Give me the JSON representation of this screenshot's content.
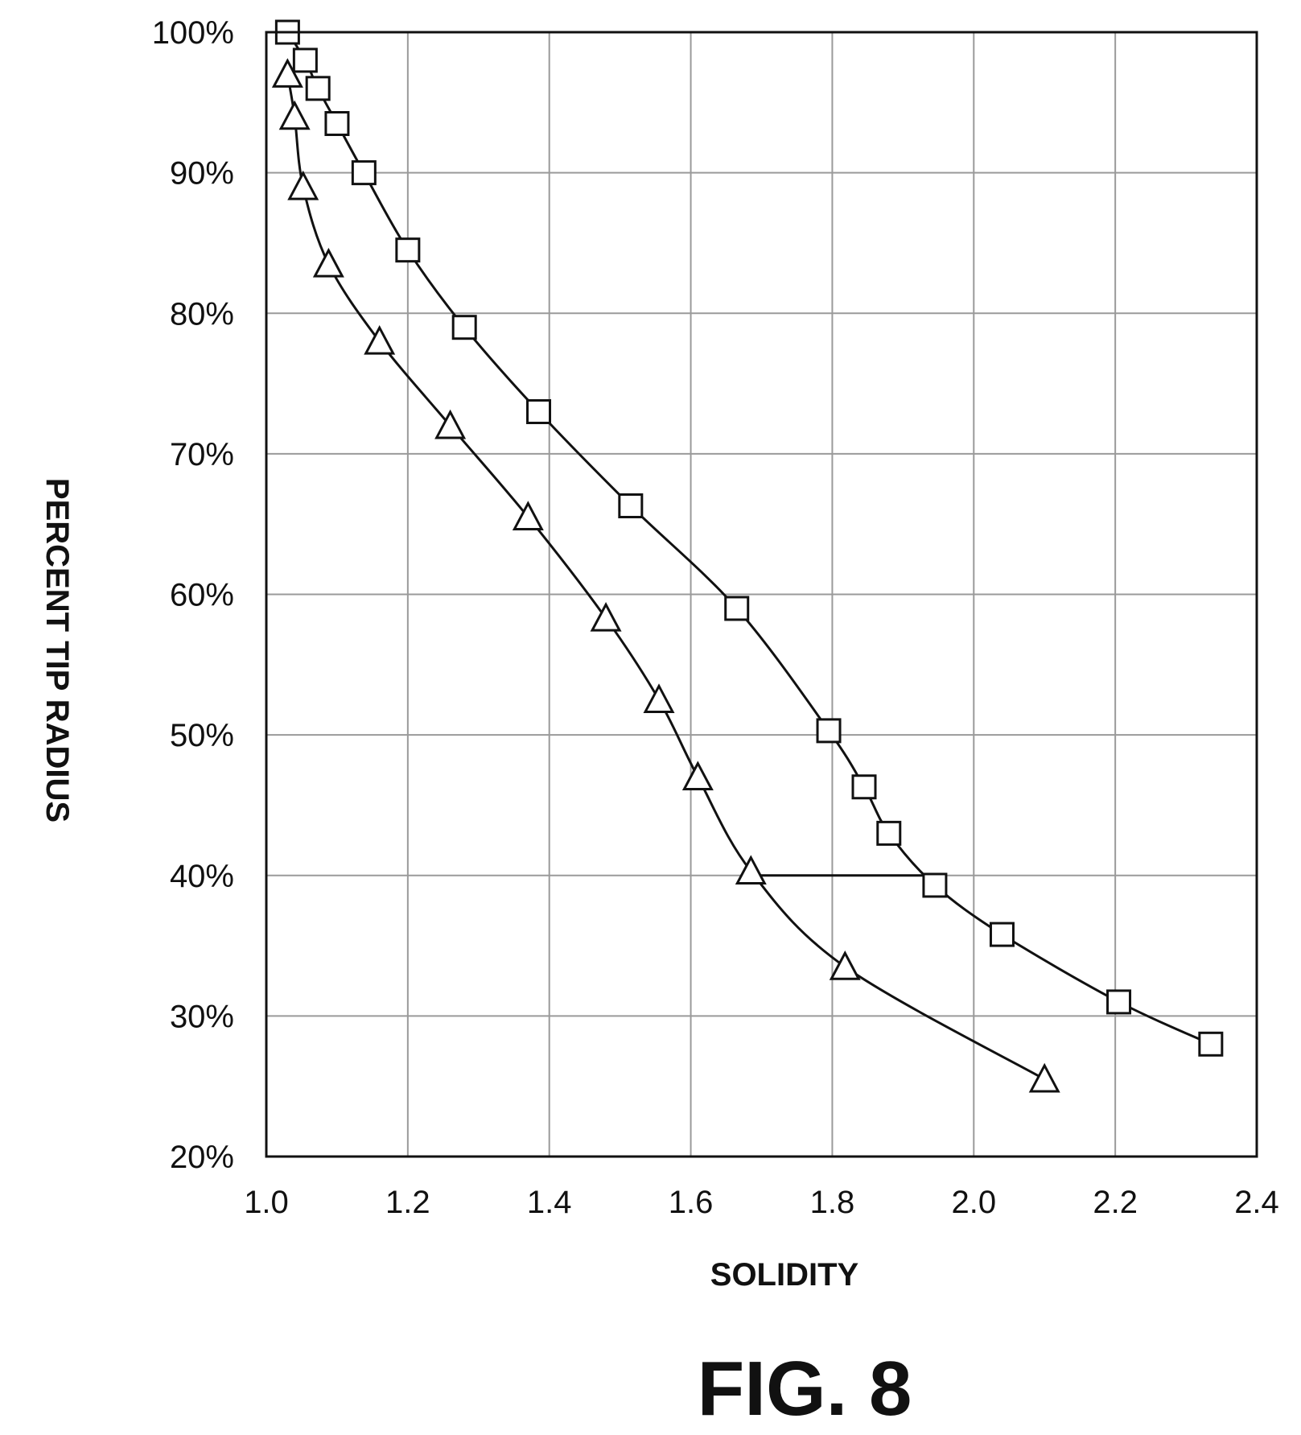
{
  "chart_data": {
    "type": "line",
    "title": "",
    "xlabel": "SOLIDITY",
    "ylabel": "PERCENT TIP RADIUS",
    "xlim": [
      1.0,
      2.4
    ],
    "ylim": [
      20,
      100
    ],
    "xticks": [
      "1.0",
      "1.2",
      "1.4",
      "1.6",
      "1.8",
      "2.0",
      "2.2",
      "2.4"
    ],
    "yticks": [
      "20%",
      "30%",
      "40%",
      "50%",
      "60%",
      "70%",
      "80%",
      "90%",
      "100%"
    ],
    "grid": true,
    "legend": "none",
    "annotations": [
      "FIG. 8"
    ],
    "series": [
      {
        "marker": "square",
        "x": [
          1.03,
          1.055,
          1.073,
          1.1,
          1.138,
          1.2,
          1.28,
          1.385,
          1.515,
          1.665,
          1.795,
          1.845,
          1.88,
          1.945,
          2.04,
          2.205,
          2.335
        ],
        "y": [
          100,
          98,
          96,
          93.5,
          90,
          84.5,
          79,
          73,
          66.3,
          59,
          50.3,
          46.3,
          43,
          39.3,
          35.8,
          31,
          28
        ]
      },
      {
        "marker": "triangle",
        "x": [
          1.03,
          1.04,
          1.052,
          1.088,
          1.16,
          1.26,
          1.37,
          1.48,
          1.555,
          1.61,
          1.685,
          1.818,
          2.1
        ],
        "y": [
          97,
          94,
          89,
          83.5,
          78,
          72,
          65.5,
          58.3,
          52.5,
          47,
          40.3,
          33.5,
          25.5
        ]
      }
    ],
    "connectors": [
      {
        "from": [
          1.685,
          40
        ],
        "to": [
          1.945,
          40
        ]
      }
    ]
  }
}
